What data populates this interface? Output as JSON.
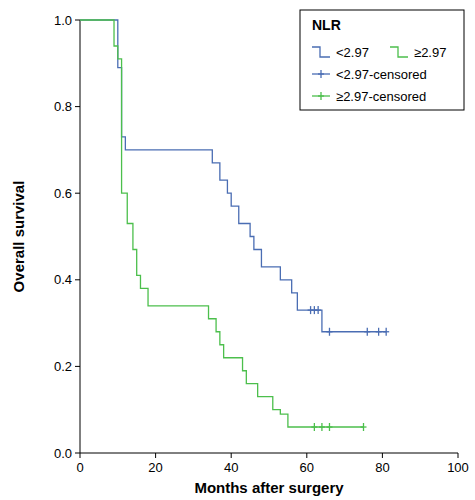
{
  "chart_data": {
    "type": "line",
    "x_label": "Months after surgery",
    "y_label": "Overall survival",
    "legend_title": "NLR",
    "legend": "top-right",
    "xlim": [
      0,
      100
    ],
    "xticks": [
      0,
      20,
      40,
      60,
      80,
      100
    ],
    "ylim": [
      0,
      1
    ],
    "yticks": [
      {
        "value": 0,
        "label": "0.0"
      },
      {
        "value": 0.2,
        "label": "0.2"
      },
      {
        "value": 0.4,
        "label": "0.4"
      },
      {
        "value": 0.6,
        "label": "0.6"
      },
      {
        "value": 0.8,
        "label": "0.8"
      },
      {
        "value": 1,
        "label": "1.0"
      }
    ],
    "series": [
      {
        "name": "<2.97",
        "color": "#4a6db3",
        "type": "line",
        "line_style": "step",
        "x": [
          0,
          10,
          11,
          12,
          35,
          37,
          39,
          40,
          42,
          45,
          46,
          48,
          53,
          56,
          57.5,
          64,
          81
        ],
        "values": [
          1,
          0.89,
          0.73,
          0.7,
          0.67,
          0.63,
          0.6,
          0.57,
          0.53,
          0.5,
          0.47,
          0.43,
          0.4,
          0.37,
          0.33,
          0.28,
          0.28
        ]
      },
      {
        "name": "≥2.97",
        "color": "#4cbf4c",
        "type": "line",
        "line_style": "step",
        "x": [
          0,
          9,
          10,
          11,
          12.5,
          14,
          15,
          16,
          18,
          34,
          36,
          37,
          38,
          43,
          44,
          47,
          51,
          53,
          55,
          75
        ],
        "values": [
          1,
          0.94,
          0.91,
          0.6,
          0.53,
          0.47,
          0.41,
          0.38,
          0.34,
          0.31,
          0.28,
          0.25,
          0.22,
          0.19,
          0.16,
          0.13,
          0.1,
          0.09,
          0.06,
          0.06
        ]
      },
      {
        "name": "<2.97-censored",
        "color": "#4a6db3",
        "type": "scatter",
        "marker": "plus",
        "x": [
          61,
          62,
          63,
          66,
          76,
          79,
          81
        ],
        "values": [
          0.33,
          0.33,
          0.33,
          0.28,
          0.28,
          0.28,
          0.28
        ]
      },
      {
        "name": "≥2.97-censored",
        "color": "#4cbf4c",
        "type": "scatter",
        "marker": "plus",
        "x": [
          62,
          64,
          66,
          75
        ],
        "values": [
          0.06,
          0.06,
          0.06,
          0.06
        ]
      }
    ]
  }
}
